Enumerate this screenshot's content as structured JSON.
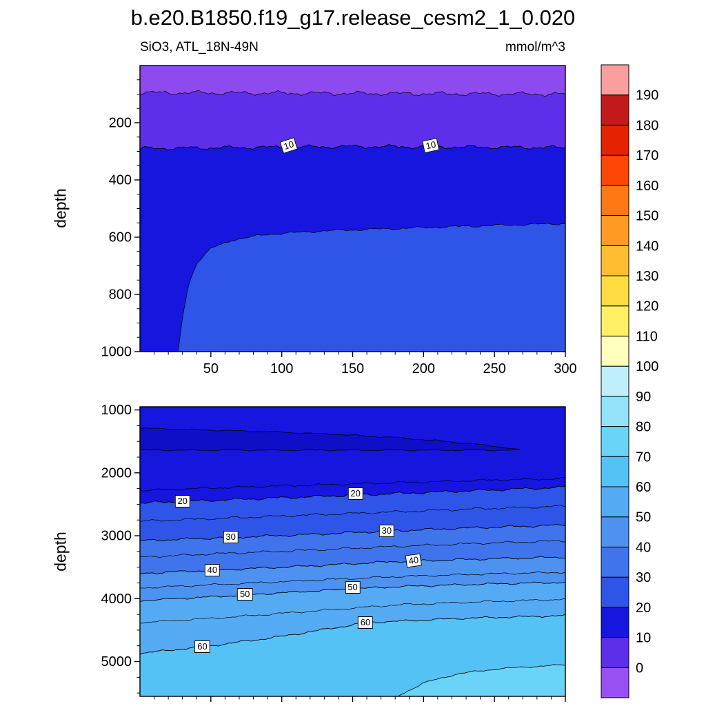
{
  "title": "b.e20.B1850.f19_g17.release_cesm2_1_0.020",
  "subtitle_left": "SiO3, ATL_18N-49N",
  "subtitle_right": "mmol/m^3",
  "axes": {
    "upper_ylabel": "depth",
    "lower_ylabel": "depth"
  },
  "chart_data": {
    "type": "contour",
    "title": "b.e20.B1850.f19_g17.release_cesm2_1_0.020",
    "field": "SiO3",
    "region": "ATL_18N-49N",
    "units": "mmol/m^3",
    "ylabel": "depth",
    "xlabel": "",
    "x_range": [
      0,
      300
    ],
    "x_ticks": [
      50,
      100,
      150,
      200,
      250,
      300
    ],
    "contour_labeled_levels": [
      10,
      20,
      30,
      40,
      50,
      60
    ],
    "colorbar": {
      "levels": [
        0,
        10,
        20,
        30,
        40,
        50,
        60,
        70,
        80,
        90,
        100,
        110,
        120,
        130,
        140,
        150,
        160,
        170,
        180,
        190
      ],
      "colors": [
        "#9850F2",
        "#5E2FEA",
        "#1616DE",
        "#2E55E8",
        "#3F74EC",
        "#4D92F0",
        "#55ABF3",
        "#55C2F6",
        "#6AD4F8",
        "#93E2FA",
        "#BFEFFC",
        "#FFFFBE",
        "#FFF066",
        "#FFDC41",
        "#FFBE32",
        "#FF9B23",
        "#FF7814",
        "#FF4605",
        "#E62300",
        "#C21A1A",
        "#FB9E9E"
      ]
    },
    "panels": [
      {
        "name": "upper",
        "depth_view": [
          0,
          1000
        ],
        "depth_ticks": [
          200,
          400,
          600,
          800,
          1000
        ],
        "base_color": "#8C4AEF",
        "boundaries": [
          {
            "level": 0,
            "amp": 9,
            "seed": 3,
            "labeled": false,
            "pts": [
              [
                0,
                95
              ],
              [
                300,
                100
              ]
            ],
            "fill_below": "#5E2FEA"
          },
          {
            "level": 10,
            "amp": 8,
            "seed": 5,
            "labeled": true,
            "pts": [
              [
                0,
                290
              ],
              [
                150,
                283
              ],
              [
                300,
                287
              ]
            ],
            "fill_below": "#1616DE"
          },
          {
            "level": 20,
            "amp": 5,
            "seed": 8,
            "labeled": false,
            "pts": [
              [
                27,
                1000
              ],
              [
                30,
                880
              ],
              [
                34,
                770
              ],
              [
                40,
                690
              ],
              [
                50,
                640
              ],
              [
                65,
                610
              ],
              [
                90,
                590
              ],
              [
                130,
                578
              ],
              [
                180,
                570
              ],
              [
                230,
                562
              ],
              [
                300,
                552
              ]
            ],
            "fill_below": "#2E55E8"
          }
        ],
        "labels": [
          {
            "text": "10",
            "x": 105,
            "depth": 280,
            "rot": -18
          },
          {
            "text": "10",
            "x": 205,
            "depth": 280,
            "rot": -12
          }
        ]
      },
      {
        "name": "lower",
        "depth_view": [
          950,
          5553
        ],
        "depth_ticks": [
          1000,
          2000,
          3000,
          4000,
          5000
        ],
        "base_color": "#1616DE",
        "boundaries": [
          {
            "level": 15,
            "amp": 22,
            "seed": 11,
            "labeled": false,
            "pts": [
              [
                0,
                2280
              ],
              [
                80,
                2220
              ],
              [
                160,
                2170
              ],
              [
                240,
                2120
              ],
              [
                300,
                2090
              ]
            ]
          },
          {
            "level": 20,
            "amp": 26,
            "seed": 12,
            "labeled": true,
            "pts": [
              [
                0,
                2480
              ],
              [
                60,
                2430
              ],
              [
                120,
                2380
              ],
              [
                180,
                2330
              ],
              [
                240,
                2280
              ],
              [
                300,
                2230
              ]
            ],
            "fill_below": "#2E55E8"
          },
          {
            "level": 25,
            "amp": 24,
            "seed": 13,
            "labeled": false,
            "pts": [
              [
                0,
                2770
              ],
              [
                60,
                2720
              ],
              [
                120,
                2670
              ],
              [
                180,
                2620
              ],
              [
                240,
                2570
              ],
              [
                300,
                2530
              ]
            ]
          },
          {
            "level": 30,
            "amp": 24,
            "seed": 14,
            "labeled": true,
            "pts": [
              [
                0,
                3080
              ],
              [
                60,
                3030
              ],
              [
                120,
                2980
              ],
              [
                180,
                2920
              ],
              [
                240,
                2870
              ],
              [
                300,
                2830
              ]
            ],
            "fill_below": "#3F74EC"
          },
          {
            "level": 35,
            "amp": 22,
            "seed": 15,
            "labeled": false,
            "pts": [
              [
                0,
                3340
              ],
              [
                60,
                3280
              ],
              [
                120,
                3230
              ],
              [
                180,
                3170
              ],
              [
                240,
                3120
              ],
              [
                300,
                3080
              ]
            ]
          },
          {
            "level": 40,
            "amp": 22,
            "seed": 16,
            "labeled": true,
            "pts": [
              [
                0,
                3600
              ],
              [
                60,
                3540
              ],
              [
                120,
                3480
              ],
              [
                180,
                3410
              ],
              [
                240,
                3370
              ],
              [
                300,
                3340
              ]
            ],
            "fill_below": "#4D92F0"
          },
          {
            "level": 45,
            "amp": 20,
            "seed": 17,
            "labeled": false,
            "pts": [
              [
                0,
                3830
              ],
              [
                60,
                3770
              ],
              [
                120,
                3710
              ],
              [
                180,
                3650
              ],
              [
                240,
                3610
              ],
              [
                300,
                3580
              ]
            ]
          },
          {
            "level": 50,
            "amp": 20,
            "seed": 18,
            "labeled": true,
            "pts": [
              [
                0,
                4030
              ],
              [
                60,
                3960
              ],
              [
                120,
                3880
              ],
              [
                180,
                3810
              ],
              [
                240,
                3770
              ],
              [
                300,
                3740
              ]
            ],
            "fill_below": "#55ABF3"
          },
          {
            "level": 55,
            "amp": 20,
            "seed": 19,
            "labeled": false,
            "pts": [
              [
                0,
                4380
              ],
              [
                60,
                4300
              ],
              [
                120,
                4200
              ],
              [
                180,
                4100
              ],
              [
                240,
                4050
              ],
              [
                300,
                4010
              ]
            ]
          },
          {
            "level": 60,
            "amp": 20,
            "seed": 20,
            "labeled": true,
            "pts": [
              [
                0,
                4870
              ],
              [
                50,
                4750
              ],
              [
                100,
                4600
              ],
              [
                160,
                4380
              ],
              [
                230,
                4310
              ],
              [
                300,
                4270
              ]
            ],
            "fill_below": "#55C2F6"
          }
        ],
        "tongue": {
          "level": 10,
          "color": "#0F0FC8",
          "upper": [
            [
              0,
              1290
            ],
            [
              40,
              1315
            ],
            [
              90,
              1345
            ],
            [
              140,
              1390
            ],
            [
              180,
              1440
            ],
            [
              210,
              1490
            ],
            [
              235,
              1540
            ],
            [
              252,
              1580
            ],
            [
              262,
              1615
            ],
            [
              268,
              1640
            ]
          ],
          "lower": [
            [
              268,
              1640
            ],
            [
              255,
              1680
            ],
            [
              235,
              1720
            ],
            [
              205,
              1770
            ],
            [
              165,
              1815
            ],
            [
              120,
              1855
            ],
            [
              75,
              1885
            ],
            [
              35,
              1910
            ],
            [
              0,
              1925
            ]
          ]
        },
        "corner_patch": {
          "level": 70,
          "color": "#6AD4F8",
          "pts": [
            [
              181,
              5560
            ],
            [
              200,
              5340
            ],
            [
              225,
              5190
            ],
            [
              255,
              5110
            ],
            [
              300,
              5050
            ]
          ]
        },
        "labels": [
          {
            "text": "20",
            "x": 30,
            "depth": 2451,
            "rot": 0
          },
          {
            "text": "20",
            "x": 152,
            "depth": 2331,
            "rot": 0
          },
          {
            "text": "30",
            "x": 64,
            "depth": 3021,
            "rot": 0
          },
          {
            "text": "30",
            "x": 174,
            "depth": 2923,
            "rot": 0
          },
          {
            "text": "40",
            "x": 51,
            "depth": 3547,
            "rot": 0
          },
          {
            "text": "40",
            "x": 193,
            "depth": 3394,
            "rot": -8
          },
          {
            "text": "50",
            "x": 74,
            "depth": 3931,
            "rot": 0
          },
          {
            "text": "50",
            "x": 150,
            "depth": 3821,
            "rot": 0
          },
          {
            "text": "60",
            "x": 159,
            "depth": 4380,
            "rot": 0
          },
          {
            "text": "60",
            "x": 44,
            "depth": 4764,
            "rot": 0
          }
        ]
      }
    ]
  }
}
